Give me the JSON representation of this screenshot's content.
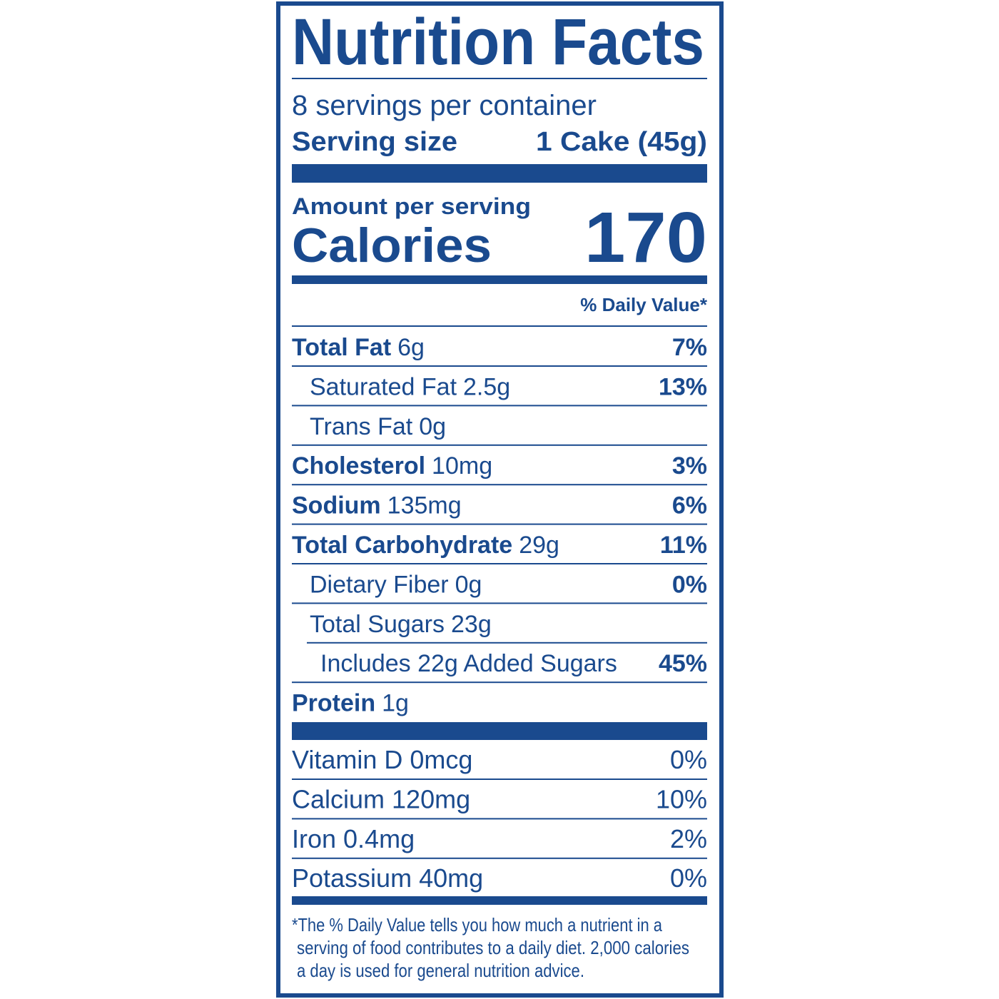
{
  "header": {
    "title": "Nutrition Facts",
    "servings": "8 servings per container",
    "serving_size_label": "Serving size",
    "serving_size_value": "1 Cake (45g)"
  },
  "calories": {
    "amount_label": "Amount per serving",
    "label": "Calories",
    "value": "170"
  },
  "daily_value_header": "% Daily Value*",
  "nutrients": [
    {
      "name": "Total Fat",
      "amount": "6g",
      "dv": "7%"
    },
    {
      "name": "Saturated Fat",
      "amount": "2.5g",
      "dv": "13%"
    },
    {
      "name": "Trans Fat",
      "amount": "0g"
    },
    {
      "name": "Cholesterol",
      "amount": "10mg",
      "dv": "3%"
    },
    {
      "name": "Sodium",
      "amount": "135mg",
      "dv": "6%"
    },
    {
      "name": "Total Carbohydrate",
      "amount": "29g",
      "dv": "11%"
    },
    {
      "name": "Dietary Fiber",
      "amount": "0g",
      "dv": "0%"
    },
    {
      "name": "Total Sugars",
      "amount": "23g"
    },
    {
      "name": "Includes 22g Added Sugars",
      "dv": "45%"
    },
    {
      "name": "Protein",
      "amount": "1g"
    }
  ],
  "vitamins": [
    {
      "label": "Vitamin D 0mcg",
      "dv": "0%"
    },
    {
      "label": "Calcium 120mg",
      "dv": "10%"
    },
    {
      "label": "Iron 0.4mg",
      "dv": "2%"
    },
    {
      "label": "Potassium 40mg",
      "dv": "0%"
    }
  ],
  "footnote": [
    "*The % Daily Value tells you how much a nutrient in a",
    "serving of food contributes to a daily diet. 2,000 calories",
    "a day is used for general nutrition advice."
  ]
}
